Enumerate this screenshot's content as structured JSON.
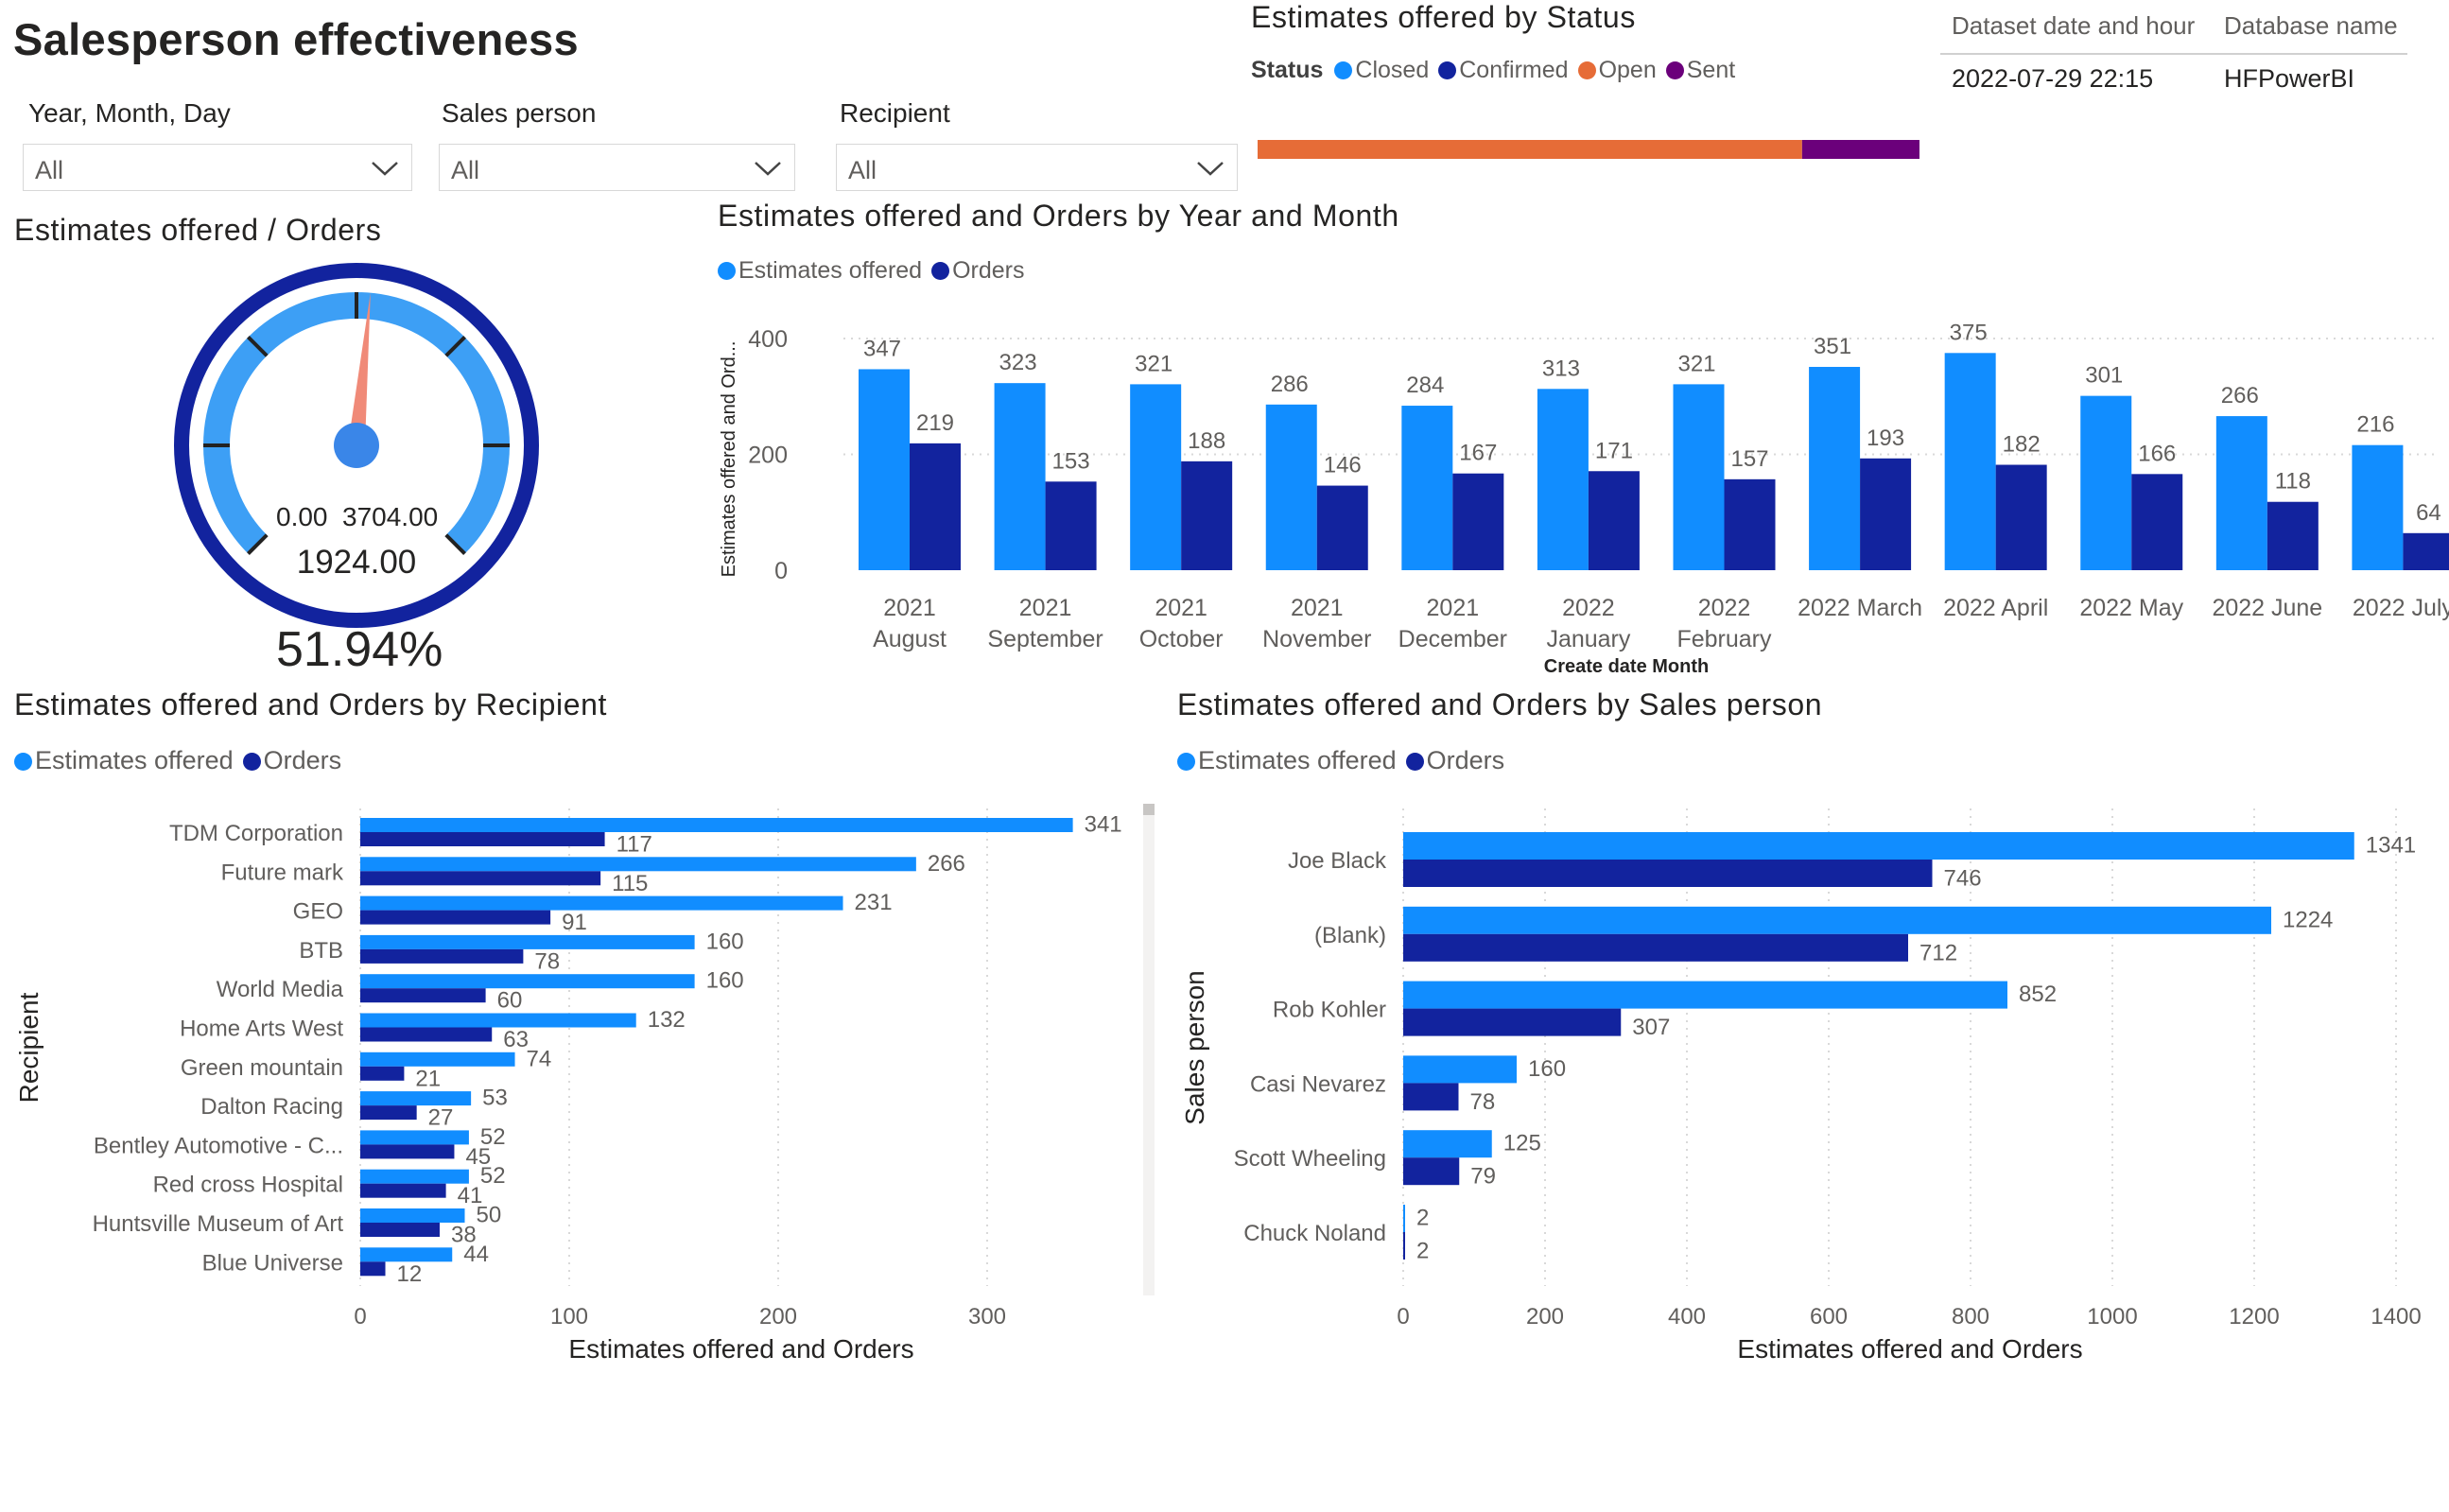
{
  "page": {
    "title": "Salesperson effectiveness"
  },
  "colors": {
    "estimates": "#118dff",
    "orders": "#12239e",
    "closed": "#118dff",
    "confirmed": "#12239e",
    "open": "#e66c37",
    "sent": "#6b007b"
  },
  "slicers": [
    {
      "label": "Year, Month, Day",
      "value": "All"
    },
    {
      "label": "Sales person",
      "value": "All"
    },
    {
      "label": "Recipient",
      "value": "All"
    }
  ],
  "status_chart": {
    "title": "Estimates offered by Status",
    "legend_title": "Status",
    "legend": [
      "Closed",
      "Confirmed",
      "Open",
      "Sent"
    ],
    "chart_data": {
      "type": "bar",
      "title": "Estimates offered by Status",
      "categories": [
        "Open",
        "Sent"
      ],
      "values": [
        3047,
        657
      ]
    }
  },
  "info_card": {
    "headers": [
      "Dataset date and hour",
      "Database name"
    ],
    "values": [
      "2022-07-29 22:15",
      "HFPowerBI"
    ]
  },
  "gauge": {
    "title": "Estimates offered / Orders",
    "min_label": "0.00",
    "max_label": "3704.00",
    "value_label": "1924.00",
    "percent_label": "51.94%",
    "chart_data": {
      "type": "gauge",
      "min": 0,
      "max": 3704,
      "value": 1924,
      "percent": 51.94
    }
  },
  "month_chart": {
    "title": "Estimates offered and Orders by Year and Month",
    "legend": [
      "Estimates offered",
      "Orders"
    ],
    "ylabel": "Estimates offered and Ord...",
    "xlabel": "Create date Month",
    "ticks": [
      "400",
      "200",
      "0"
    ],
    "chart_data": {
      "type": "bar",
      "categories": [
        [
          "2021",
          "August"
        ],
        [
          "2021",
          "September"
        ],
        [
          "2021",
          "October"
        ],
        [
          "2021",
          "November"
        ],
        [
          "2021",
          "December"
        ],
        [
          "2022",
          "January"
        ],
        [
          "2022",
          "February"
        ],
        [
          "2022 March"
        ],
        [
          "2022 April"
        ],
        [
          "2022 May"
        ],
        [
          "2022 June"
        ],
        [
          "2022 July"
        ]
      ],
      "series": [
        {
          "name": "Estimates offered",
          "values": [
            347,
            323,
            321,
            286,
            284,
            313,
            321,
            351,
            375,
            301,
            266,
            216
          ]
        },
        {
          "name": "Orders",
          "values": [
            219,
            153,
            188,
            146,
            167,
            171,
            157,
            193,
            182,
            166,
            118,
            64
          ]
        }
      ],
      "ylim": [
        0,
        400
      ],
      "xlabel": "Create date Month",
      "ylabel": "Estimates offered and Ord..."
    }
  },
  "recipient_chart": {
    "title": "Estimates offered and Orders by Recipient",
    "legend": [
      "Estimates offered",
      "Orders"
    ],
    "ylabel": "Recipient",
    "xlabel": "Estimates offered and Orders",
    "ticks": [
      "0",
      "100",
      "200",
      "300"
    ],
    "chart_data": {
      "type": "bar",
      "orientation": "horizontal",
      "categories": [
        "TDM Corporation",
        "Future mark",
        "GEO",
        "BTB",
        "World Media",
        "Home Arts West",
        "Green mountain",
        "Dalton Racing",
        "Bentley Automotive - C...",
        "Red cross Hospital",
        "Huntsville Museum of Art",
        "Blue Universe"
      ],
      "series": [
        {
          "name": "Estimates offered",
          "values": [
            341,
            266,
            231,
            160,
            160,
            132,
            74,
            53,
            52,
            52,
            50,
            44
          ]
        },
        {
          "name": "Orders",
          "values": [
            117,
            115,
            91,
            78,
            60,
            63,
            21,
            27,
            45,
            41,
            38,
            12
          ]
        }
      ],
      "xlim": [
        0,
        360
      ],
      "xlabel": "Estimates offered and Orders",
      "ylabel": "Recipient"
    }
  },
  "salesperson_chart": {
    "title": "Estimates offered and Orders by Sales person",
    "legend": [
      "Estimates offered",
      "Orders"
    ],
    "ylabel": "Sales person",
    "xlabel": "Estimates offered and Orders",
    "ticks": [
      "0",
      "200",
      "400",
      "600",
      "800",
      "1000",
      "1200",
      "1400"
    ],
    "chart_data": {
      "type": "bar",
      "orientation": "horizontal",
      "categories": [
        "Joe Black",
        "(Blank)",
        "Rob Kohler",
        "Casi Nevarez",
        "Scott Wheeling",
        "Chuck Noland"
      ],
      "series": [
        {
          "name": "Estimates offered",
          "values": [
            1341,
            1224,
            852,
            160,
            125,
            2
          ]
        },
        {
          "name": "Orders",
          "values": [
            746,
            712,
            307,
            78,
            79,
            2
          ]
        }
      ],
      "xlim": [
        0,
        1400
      ],
      "xlabel": "Estimates offered and Orders",
      "ylabel": "Sales person"
    }
  }
}
